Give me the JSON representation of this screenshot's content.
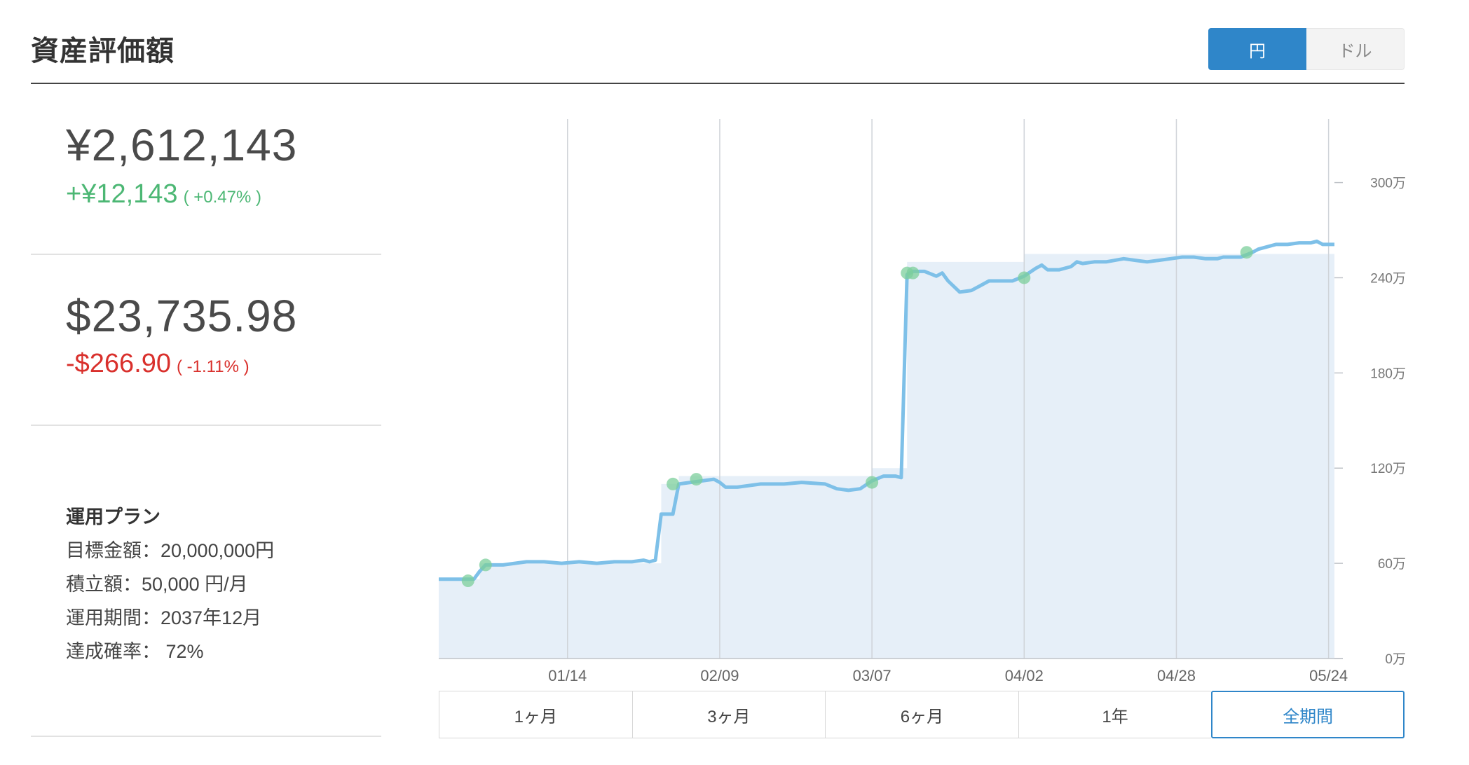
{
  "header": {
    "title": "資産評価額",
    "currency_yen": "円",
    "currency_dollar": "ドル"
  },
  "summary": {
    "yen_value": "¥2,612,143",
    "yen_change": "+¥12,143",
    "yen_change_pct": "( +0.47% )",
    "usd_value": "$23,735.98",
    "usd_change": "-$266.90",
    "usd_change_pct": "( -1.11% )"
  },
  "plan": {
    "title": "運用プラン",
    "rows": [
      "目標金額：20,000,000円",
      "積立額：50,000 円/月",
      "運用期間：2037年12月",
      "達成確率： 72%"
    ]
  },
  "range_buttons": [
    "1ヶ月",
    "3ヶ月",
    "6ヶ月",
    "1年",
    "全期間"
  ],
  "active_range": "全期間",
  "colors": {
    "line": "#7ec0e8",
    "area": "#e6eff8",
    "marker": "#7ccf9b",
    "accent": "#2f86c9",
    "positive": "#4cb774",
    "negative": "#d9302c"
  },
  "chart_data": {
    "type": "area",
    "y_unit": "万",
    "ylim": [
      0,
      340
    ],
    "ytick_labels": [
      "0万",
      "60万",
      "120万",
      "180万",
      "240万",
      "300万"
    ],
    "yticks": [
      0,
      60,
      120,
      180,
      240,
      300
    ],
    "xtick_labels": [
      "01/14",
      "02/09",
      "03/07",
      "04/02",
      "04/28",
      "05/24"
    ],
    "xlim": [
      -22,
      131
    ],
    "xtick_positions": [
      0,
      26,
      52,
      78,
      104,
      130
    ],
    "grid": true,
    "series": [
      {
        "type": "line",
        "points": [
          [
            -22,
            50
          ],
          [
            -16,
            50
          ],
          [
            -15,
            55
          ],
          [
            -14,
            59
          ],
          [
            -11,
            59
          ],
          [
            -9,
            60
          ],
          [
            -7,
            61
          ],
          [
            -4,
            61
          ],
          [
            -1,
            60
          ],
          [
            2,
            61
          ],
          [
            5,
            60
          ],
          [
            8,
            61
          ],
          [
            11,
            61
          ],
          [
            13,
            62
          ],
          [
            14,
            61
          ],
          [
            15,
            62
          ],
          [
            16,
            91
          ],
          [
            18,
            91
          ],
          [
            19,
            110
          ],
          [
            21,
            111
          ],
          [
            23,
            112
          ],
          [
            25,
            113
          ],
          [
            26,
            111
          ],
          [
            27,
            108
          ],
          [
            29,
            108
          ],
          [
            31,
            109
          ],
          [
            33,
            110
          ],
          [
            37,
            110
          ],
          [
            40,
            111
          ],
          [
            44,
            110
          ],
          [
            46,
            107
          ],
          [
            48,
            106
          ],
          [
            50,
            107
          ],
          [
            52,
            112
          ],
          [
            54,
            115
          ],
          [
            56,
            115
          ],
          [
            57,
            114
          ],
          [
            58,
            242
          ],
          [
            59,
            244
          ],
          [
            61,
            244
          ],
          [
            63,
            241
          ],
          [
            64,
            243
          ],
          [
            65,
            238
          ],
          [
            67,
            231
          ],
          [
            69,
            232
          ],
          [
            70,
            234
          ],
          [
            72,
            238
          ],
          [
            74,
            238
          ],
          [
            76,
            238
          ],
          [
            78,
            241
          ],
          [
            80,
            246
          ],
          [
            81,
            248
          ],
          [
            82,
            245
          ],
          [
            84,
            245
          ],
          [
            86,
            247
          ],
          [
            87,
            250
          ],
          [
            88,
            249
          ],
          [
            90,
            250
          ],
          [
            92,
            250
          ],
          [
            95,
            252
          ],
          [
            97,
            251
          ],
          [
            99,
            250
          ],
          [
            101,
            251
          ],
          [
            103,
            252
          ],
          [
            105,
            253
          ],
          [
            107,
            253
          ],
          [
            109,
            252
          ],
          [
            111,
            252
          ],
          [
            112,
            253
          ],
          [
            115,
            253
          ],
          [
            117,
            256
          ],
          [
            118,
            258
          ],
          [
            121,
            261
          ],
          [
            123,
            261
          ],
          [
            125,
            262
          ],
          [
            127,
            262
          ],
          [
            128,
            263
          ],
          [
            129,
            261
          ],
          [
            131,
            261
          ]
        ]
      },
      {
        "type": "area",
        "name_hint": "invested",
        "points": [
          [
            -22,
            50
          ],
          [
            -15,
            50
          ],
          [
            -15,
            60
          ],
          [
            16,
            60
          ],
          [
            16,
            110
          ],
          [
            19,
            110
          ],
          [
            19,
            115
          ],
          [
            52,
            115
          ],
          [
            52,
            120
          ],
          [
            58,
            120
          ],
          [
            58,
            250
          ],
          [
            78,
            250
          ],
          [
            78,
            255
          ],
          [
            131,
            255
          ]
        ]
      }
    ],
    "markers": [
      [
        -17,
        49
      ],
      [
        -14,
        59
      ],
      [
        18,
        110
      ],
      [
        22,
        113
      ],
      [
        52,
        111
      ],
      [
        58,
        243
      ],
      [
        59,
        243
      ],
      [
        78,
        240
      ],
      [
        116,
        256
      ]
    ]
  }
}
